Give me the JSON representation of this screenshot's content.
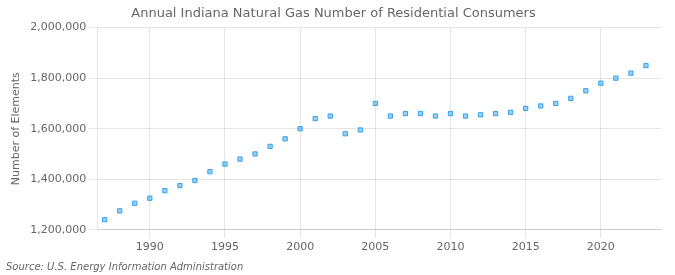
{
  "chart_data": {
    "type": "scatter",
    "title": "Annual Indiana Natural Gas Number of Residential Consumers",
    "ylabel": "Number of Elements",
    "annotations": [
      "Source: U.S. Energy Information Administration"
    ],
    "x": [
      1987,
      1988,
      1989,
      1990,
      1991,
      1992,
      1993,
      1994,
      1995,
      1996,
      1997,
      1998,
      1999,
      2000,
      2001,
      2002,
      2003,
      2004,
      2005,
      2006,
      2007,
      2008,
      2009,
      2010,
      2011,
      2012,
      2013,
      2014,
      2015,
      2016,
      2017,
      2018,
      2019,
      2020,
      2021,
      2022,
      2023
    ],
    "values": [
      1240000,
      1275000,
      1305000,
      1325000,
      1355000,
      1375000,
      1395000,
      1430000,
      1460000,
      1480000,
      1500000,
      1530000,
      1560000,
      1600000,
      1640000,
      1650000,
      1580000,
      1595000,
      1700000,
      1650000,
      1660000,
      1660000,
      1650000,
      1660000,
      1650000,
      1655000,
      1660000,
      1665000,
      1680000,
      1690000,
      1700000,
      1720000,
      1750000,
      1780000,
      1800000,
      1820000,
      1850000
    ],
    "marker": "square",
    "xlim": [
      1986.5,
      2024
    ],
    "xticks": [
      1990,
      1995,
      2000,
      2005,
      2010,
      2015,
      2020
    ],
    "ylim": [
      1200000,
      2000000
    ],
    "yticks": [
      {
        "value": 1200000,
        "label": "1,200,000"
      },
      {
        "value": 1400000,
        "label": "1,400,000"
      },
      {
        "value": 1600000,
        "label": "1,600,000"
      },
      {
        "value": 1800000,
        "label": "1,800,000"
      },
      {
        "value": 2000000,
        "label": "2,000,000"
      }
    ],
    "grid": true,
    "legend": false
  }
}
